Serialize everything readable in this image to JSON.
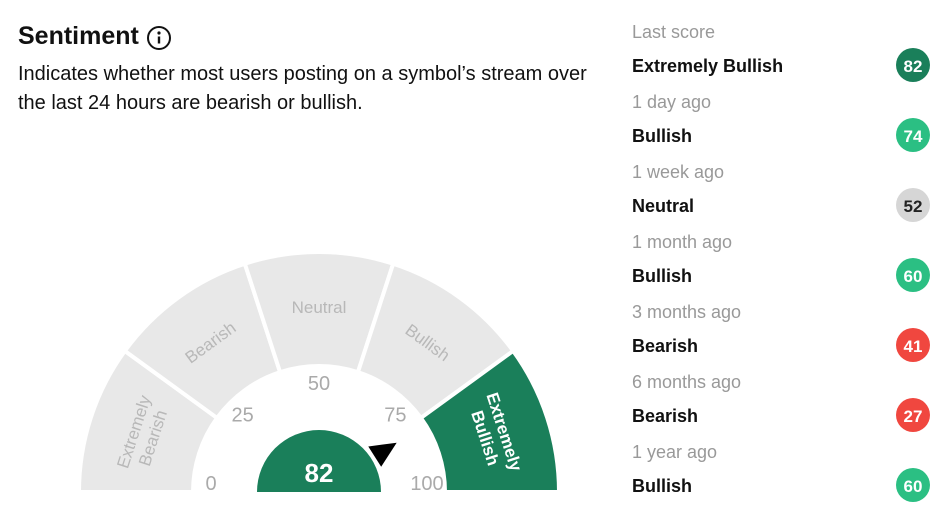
{
  "header": {
    "title": "Sentiment",
    "description": "Indicates whether most users posting on a symbol’s stream over the last 24 hours are bearish or bullish."
  },
  "gauge": {
    "value": 82,
    "range": [
      0,
      100
    ],
    "ticks": [
      0,
      25,
      50,
      75,
      100
    ],
    "value_color": "#1a7f5a",
    "segments": [
      {
        "label": "Extremely Bearish",
        "color": "#e8e8e8",
        "text_color": "#b8b8b8"
      },
      {
        "label": "Bearish",
        "color": "#e8e8e8",
        "text_color": "#b8b8b8"
      },
      {
        "label": "Neutral",
        "color": "#e8e8e8",
        "text_color": "#b8b8b8"
      },
      {
        "label": "Bullish",
        "color": "#e8e8e8",
        "text_color": "#b8b8b8"
      },
      {
        "label": "Extremely Bullish",
        "color": "#1a7f5a",
        "text_color": "#ffffff"
      }
    ]
  },
  "history": [
    {
      "period": "Last score",
      "label": "Extremely Bullish",
      "score": 82,
      "color": "#1a7f5a",
      "text_color": "#ffffff"
    },
    {
      "period": "1 day ago",
      "label": "Bullish",
      "score": 74,
      "color": "#2bbf83",
      "text_color": "#ffffff"
    },
    {
      "period": "1 week ago",
      "label": "Neutral",
      "score": 52,
      "color": "#d6d6d6",
      "text_color": "#222222"
    },
    {
      "period": "1 month ago",
      "label": "Bullish",
      "score": 60,
      "color": "#2bbf83",
      "text_color": "#ffffff"
    },
    {
      "period": "3 months ago",
      "label": "Bearish",
      "score": 41,
      "color": "#f0473f",
      "text_color": "#ffffff"
    },
    {
      "period": "6 months ago",
      "label": "Bearish",
      "score": 27,
      "color": "#f0473f",
      "text_color": "#ffffff"
    },
    {
      "period": "1 year ago",
      "label": "Bullish",
      "score": 60,
      "color": "#2bbf83",
      "text_color": "#ffffff"
    }
  ]
}
